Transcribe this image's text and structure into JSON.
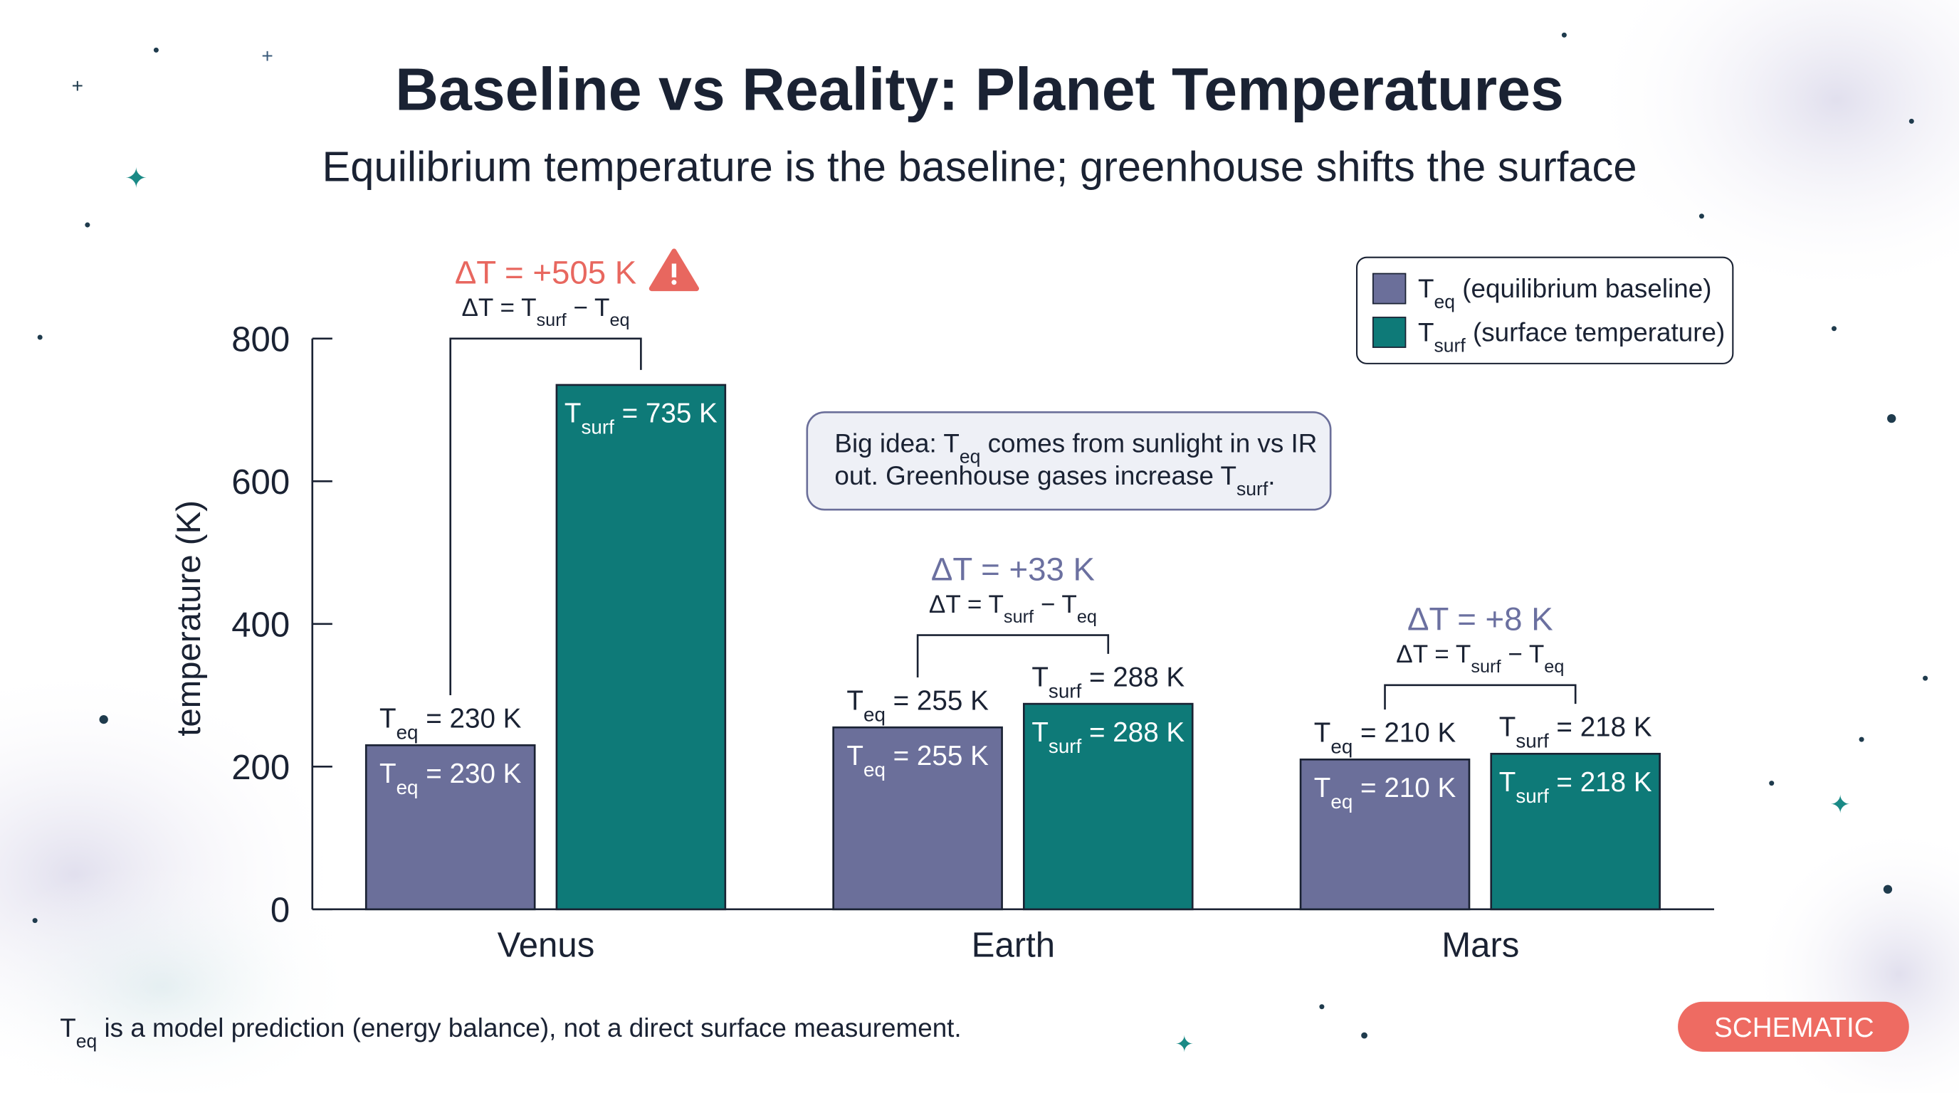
{
  "chart_data": {
    "type": "bar",
    "title": "Baseline vs Reality: Planet Temperatures",
    "subtitle": "Equilibrium temperature is the baseline; greenhouse shifts the surface",
    "y_label": "temperature (K)",
    "categories": [
      "Venus",
      "Earth",
      "Mars"
    ],
    "series": [
      {
        "name": "Teq (equilibrium baseline)",
        "color": "#6b6f9a",
        "values": [
          230,
          255,
          210
        ],
        "value_labels": [
          "Teq = 230 K",
          "Teq = 255 K",
          "Teq = 210 K"
        ]
      },
      {
        "name": "Tsurf (surface temperature)",
        "color": "#0e7a78",
        "values": [
          735,
          288,
          218
        ],
        "value_labels": [
          "Tsurf = 735 K",
          "Tsurf = 288 K",
          "Tsurf = 218 K"
        ]
      }
    ],
    "ylim": [
      0,
      800
    ],
    "yticks": [
      0,
      200,
      400,
      600,
      800
    ],
    "delta_labels": [
      "ΔT = +505 K",
      "ΔT = +33 K",
      "ΔT = +8 K"
    ],
    "delta_colors": [
      "#e8675f",
      "#6b70a0",
      "#6b70a0"
    ],
    "delta_formula": "ΔT = Tsurf − Teq",
    "note": "Big idea: Teq comes from sunlight in vs IR out. Greenhouse gases increase Tsurf.",
    "footnote": "Teq is a model prediction (energy balance), not a direct surface measurement.",
    "badge": "SCHEMATIC"
  }
}
